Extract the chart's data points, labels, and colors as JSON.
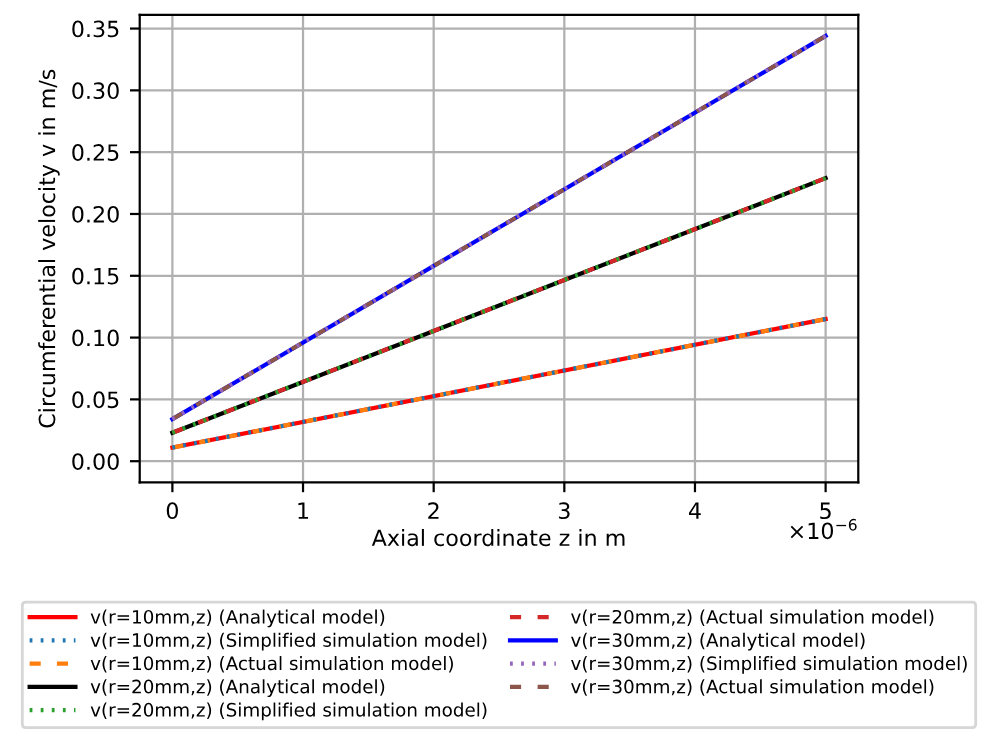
{
  "chart_data": {
    "type": "line",
    "xlabel": "Axial coordinate z in m",
    "ylabel": "Circumferential velocity v in m/s",
    "x": [
      0,
      5
    ],
    "series": [
      {
        "name": "v(r=10mm,z) (Analytical model)",
        "color": "#ff0000",
        "line_style": "solid",
        "values": [
          0.011,
          0.115
        ]
      },
      {
        "name": "v(r=10mm,z) (Simplified simulation model)",
        "color": "#1f77b4",
        "line_style": "dotted",
        "values": [
          0.011,
          0.115
        ]
      },
      {
        "name": "v(r=10mm,z) (Actual simulation model)",
        "color": "#ff7f0e",
        "line_style": "dashed",
        "values": [
          0.011,
          0.115
        ]
      },
      {
        "name": "v(r=20mm,z) (Analytical model)",
        "color": "#000000",
        "line_style": "solid",
        "values": [
          0.023,
          0.229
        ]
      },
      {
        "name": "v(r=20mm,z) (Simplified simulation model)",
        "color": "#2ca02c",
        "line_style": "dotted",
        "values": [
          0.023,
          0.229
        ]
      },
      {
        "name": "v(r=20mm,z) (Actual simulation model)",
        "color": "#d62728",
        "line_style": "dashed",
        "values": [
          0.023,
          0.229
        ]
      },
      {
        "name": "v(r=30mm,z) (Analytical model)",
        "color": "#0000ff",
        "line_style": "solid",
        "values": [
          0.034,
          0.344
        ]
      },
      {
        "name": "v(r=30mm,z) (Simplified simulation model)",
        "color": "#9467bd",
        "line_style": "dotted",
        "values": [
          0.034,
          0.344
        ]
      },
      {
        "name": "v(r=30mm,z) (Actual simulation model)",
        "color": "#8c564b",
        "line_style": "dashed",
        "values": [
          0.034,
          0.344
        ]
      }
    ],
    "xlim": [
      -0.25,
      5.25
    ],
    "xticks": [
      0,
      1,
      2,
      3,
      4,
      5
    ],
    "ylim": [
      -0.0172,
      0.361
    ],
    "yticks": [
      {
        "value": 0,
        "label": "0.00"
      },
      0.05,
      {
        "value": 0.1,
        "label": "0.10"
      },
      0.15,
      {
        "value": 0.2,
        "label": "0.20"
      },
      0.25,
      {
        "value": 0.3,
        "label": "0.30"
      },
      0.35
    ],
    "annotations": [
      "×10$^{−6}$"
    ],
    "grid": true,
    "legend": "bottom",
    "marker": "none"
  }
}
